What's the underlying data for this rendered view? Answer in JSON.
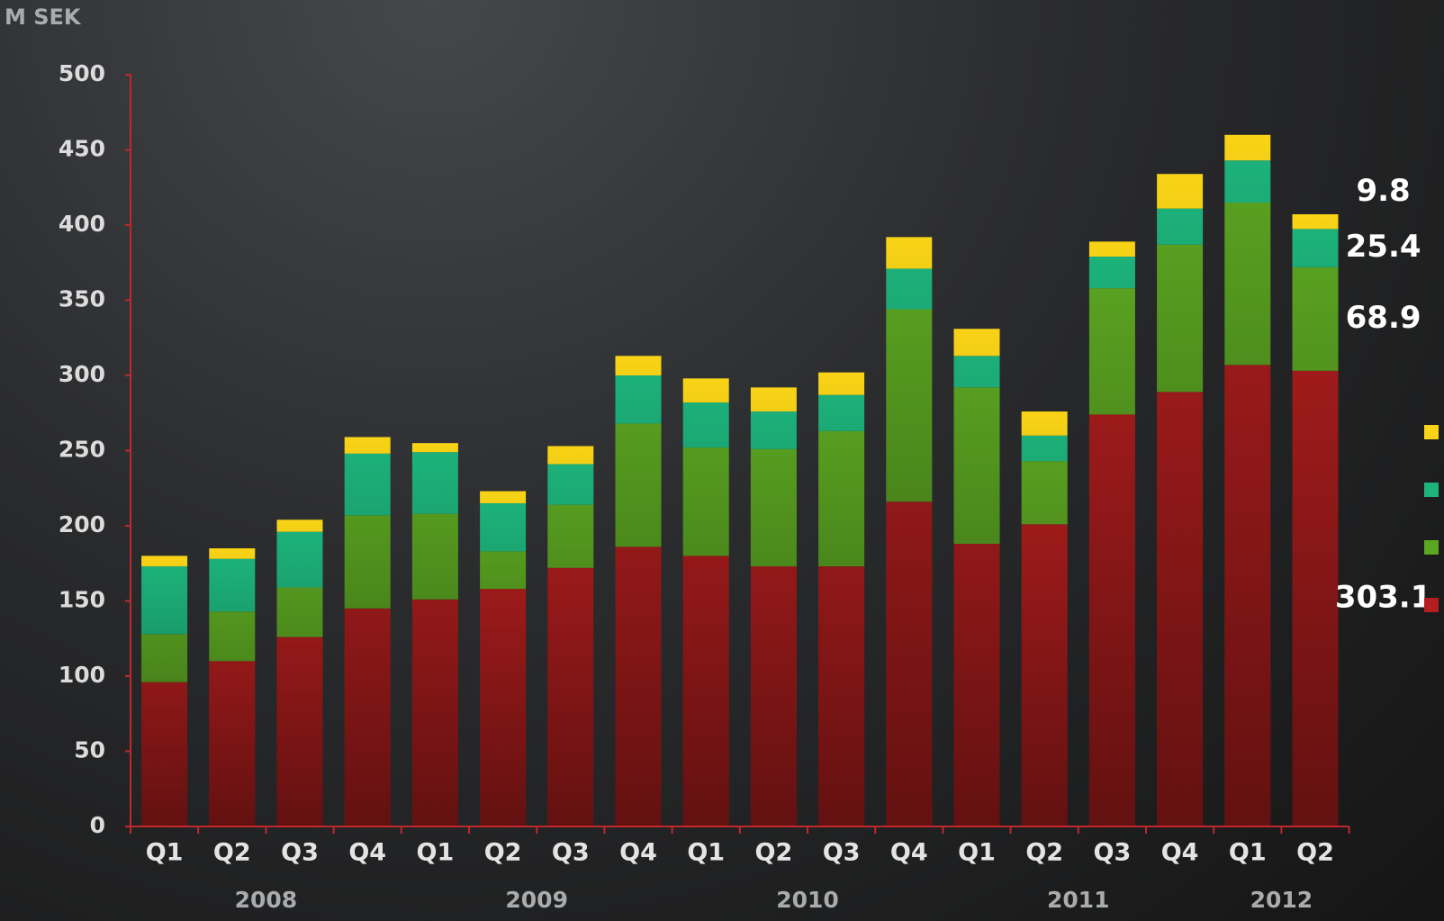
{
  "chart_data": {
    "type": "stacked_bar",
    "y_label": "M SEK",
    "categories": [
      "Q1",
      "Q2",
      "Q3",
      "Q4",
      "Q1",
      "Q2",
      "Q3",
      "Q4",
      "Q1",
      "Q2",
      "Q3",
      "Q4",
      "Q1",
      "Q2",
      "Q3",
      "Q4",
      "Q1",
      "Q2"
    ],
    "groups": [
      "2008",
      "2009",
      "2010",
      "2011",
      "2012"
    ],
    "series": [
      {
        "color": "#b41e1e",
        "values": [
          96,
          110,
          126,
          145,
          151,
          158,
          172,
          186,
          180,
          173,
          173,
          216,
          188,
          201,
          274,
          289,
          307,
          303.1
        ]
      },
      {
        "color": "#5ca722",
        "values": [
          32,
          33,
          33,
          62,
          57,
          25,
          42,
          82,
          72,
          78,
          90,
          128,
          104,
          42,
          84,
          98,
          108,
          68.9
        ]
      },
      {
        "color": "#1db47c",
        "values": [
          45,
          35,
          37,
          41,
          41,
          32,
          27,
          32,
          30,
          25,
          24,
          27,
          21,
          17,
          21,
          24,
          28,
          25.4
        ]
      },
      {
        "color": "#f8d316",
        "values": [
          7,
          7,
          8,
          11,
          6,
          8,
          12,
          13,
          16,
          16,
          15,
          21,
          18,
          16,
          10,
          23,
          17,
          9.8
        ]
      }
    ],
    "ylim": [
      0,
      500
    ],
    "yticks": [
      0,
      50,
      100,
      150,
      200,
      250,
      300,
      350,
      400,
      450,
      500
    ],
    "grid": false
  }
}
